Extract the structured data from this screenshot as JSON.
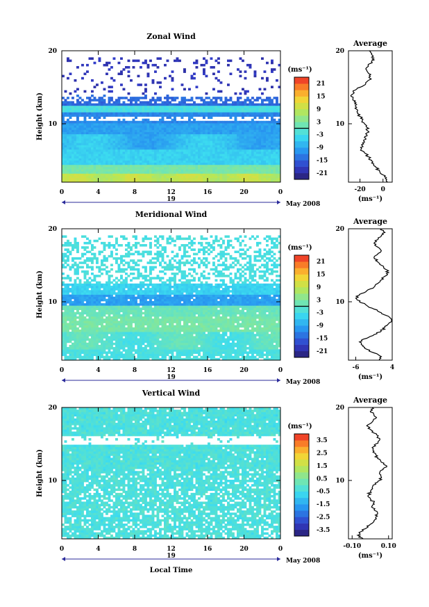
{
  "chart_data": [
    {
      "type": "heatmap",
      "title": "Zonal Wind",
      "ylabel": "Height (km)",
      "unit": "(ms⁻¹)",
      "xticks": [
        "0",
        "4",
        "8",
        "12",
        "16",
        "20",
        "0"
      ],
      "date_label": "19",
      "month_label": "May 2008",
      "yticks": [
        "20",
        "10"
      ],
      "ylim": [
        2,
        20
      ],
      "xlim": [
        0,
        24
      ],
      "colorbar": {
        "ticks": [
          "21",
          "15",
          "9",
          "3",
          "-3",
          "-9",
          "-15",
          "-21"
        ],
        "range": [
          -24,
          24
        ]
      },
      "profile": {
        "title": "Average",
        "yticks": [
          "20",
          "10"
        ],
        "xticks": [
          "-20",
          "0"
        ],
        "xlim": [
          -30,
          8
        ],
        "x": [
          4,
          2,
          0,
          -3,
          -6,
          -8,
          -10,
          -13,
          -16,
          -19,
          -18,
          -16,
          -15,
          -14,
          -13,
          -14,
          -16,
          -18,
          -20,
          -22,
          -23,
          -24,
          -25,
          -26,
          -27,
          -26,
          -20,
          -15,
          -12,
          -11,
          -13,
          -15,
          -13,
          -10,
          -8,
          -10,
          -12,
          -14,
          -15,
          -16,
          -14,
          -12,
          -10,
          -8,
          -6,
          -4,
          -2,
          1,
          4,
          6
        ],
        "y": [
          2,
          2.5,
          3,
          3.5,
          4,
          4.5,
          5,
          5.5,
          6,
          6.5,
          7,
          7.5,
          8,
          8.5,
          9,
          9.5,
          10,
          10.5,
          11,
          11.5,
          12,
          12.5,
          13,
          13.5,
          14,
          14.5,
          15,
          15.5,
          16,
          16.5,
          17,
          17.5,
          18,
          18.5,
          19,
          19.5,
          20,
          2,
          2,
          2,
          2,
          2,
          2,
          2,
          2,
          2,
          2,
          2,
          2,
          2
        ],
        "xlabel": "(ms⁻¹)"
      }
    },
    {
      "type": "heatmap",
      "title": "Meridional Wind",
      "ylabel": "Height (km)",
      "unit": "(ms⁻¹)",
      "xticks": [
        "0",
        "4",
        "8",
        "12",
        "16",
        "20",
        "0"
      ],
      "date_label": "19",
      "month_label": "May 2008",
      "yticks": [
        "20",
        "10"
      ],
      "ylim": [
        2,
        20
      ],
      "xlim": [
        0,
        24
      ],
      "colorbar": {
        "ticks": [
          "21",
          "15",
          "9",
          "3",
          "-3",
          "-9",
          "-15",
          "-21"
        ],
        "range": [
          -24,
          24
        ]
      },
      "profile": {
        "title": "Average",
        "yticks": [
          "20",
          "10"
        ],
        "xticks": [
          "-6",
          "4"
        ],
        "xlim": [
          -8,
          4
        ],
        "x": [
          0.5,
          1,
          -1,
          -3,
          -4,
          -5,
          -3,
          -1,
          1,
          2,
          3,
          4,
          3,
          1,
          -1,
          -3,
          -5,
          -6,
          -5,
          -3,
          -1,
          0,
          1,
          2,
          3,
          2,
          1,
          0,
          -1,
          0,
          1,
          0,
          -1,
          0,
          1,
          2,
          1,
          0
        ],
        "y": [
          2,
          2.5,
          3,
          3.5,
          4,
          4.5,
          5,
          5.5,
          6,
          6.5,
          7,
          7.5,
          8,
          8.5,
          9,
          9.5,
          10,
          10.5,
          11,
          11.5,
          12,
          12.5,
          13,
          13.5,
          14,
          14.5,
          15,
          15.5,
          16,
          16.5,
          17,
          17.5,
          18,
          18.5,
          19,
          19.5,
          20,
          20
        ],
        "xlabel": "(ms⁻¹)"
      }
    },
    {
      "type": "heatmap",
      "title": "Vertical Wind",
      "ylabel": "Height (km)",
      "xlabel": "Local Time",
      "unit": "(ms⁻¹)",
      "xticks": [
        "0",
        "4",
        "8",
        "12",
        "16",
        "20",
        "0"
      ],
      "date_label": "19",
      "month_label": "May 2008",
      "yticks": [
        "20",
        "10"
      ],
      "ylim": [
        2,
        20
      ],
      "xlim": [
        0,
        24
      ],
      "colorbar": {
        "ticks": [
          "3.5",
          "2.5",
          "1.5",
          "0.5",
          "-0.5",
          "-1.5",
          "-2.5",
          "-3.5"
        ],
        "range": [
          -4,
          4
        ]
      },
      "profile": {
        "title": "Average",
        "yticks": [
          "20",
          "10"
        ],
        "xticks": [
          "-0.10",
          "0.10"
        ],
        "xlim": [
          -0.12,
          0.12
        ],
        "x": [
          -0.04,
          -0.07,
          -0.05,
          -0.02,
          0.0,
          0.02,
          0.03,
          0.04,
          0.02,
          0.01,
          0.02,
          0.0,
          -0.01,
          0.0,
          0.01,
          0.03,
          0.05,
          0.06,
          0.05,
          0.07,
          0.09,
          0.06,
          0.04,
          0.03,
          0.02,
          0.01,
          0.03,
          0.05,
          0.04,
          0.02,
          0.0,
          -0.02,
          0.01,
          0.03,
          0.02,
          0.0,
          0.01,
          0.02
        ],
        "y": [
          2,
          2.5,
          3,
          3.5,
          4,
          4.5,
          5,
          5.5,
          6,
          6.5,
          7,
          7.5,
          8,
          8.5,
          9,
          9.5,
          10,
          10.5,
          11,
          11.5,
          12,
          12.5,
          13,
          13.5,
          14,
          14.5,
          15,
          15.5,
          16,
          16.5,
          17,
          17.5,
          18,
          18.5,
          19,
          19.5,
          20,
          20
        ],
        "xlabel": "(ms⁻¹)"
      }
    }
  ]
}
